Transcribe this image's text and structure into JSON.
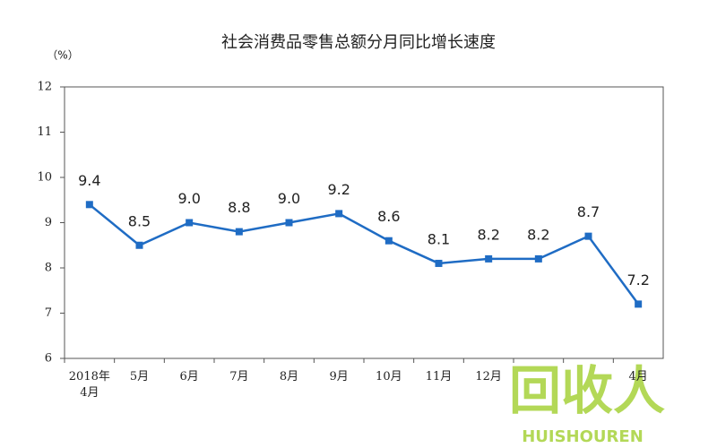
{
  "chart_data": {
    "type": "line",
    "title": "社会消费品零售总额分月同比增长速度",
    "y_unit": "（%）",
    "categories": [
      "2018年\n4月",
      "5月",
      "6月",
      "7月",
      "8月",
      "9月",
      "10月",
      "11月",
      "12月",
      null,
      null,
      "4月"
    ],
    "series": [
      {
        "name": "社会消费品零售总额同比增长",
        "color": "#1f6cc4",
        "values": [
          9.4,
          8.5,
          9.0,
          8.8,
          9.0,
          9.2,
          8.6,
          8.1,
          8.2,
          8.2,
          8.7,
          7.2
        ],
        "value_labels": [
          "9.4",
          "8.5",
          "9.0",
          "8.8",
          "9.0",
          "9.2",
          "8.6",
          "8.1",
          "8.2",
          "8.2",
          "8.7",
          "7.2"
        ]
      }
    ],
    "ylim": [
      6,
      12
    ],
    "yticks": [
      6,
      7,
      8,
      9,
      10,
      11,
      12
    ],
    "watermark": {
      "main": "回收人",
      "sub": "HUISHOUREN"
    }
  }
}
